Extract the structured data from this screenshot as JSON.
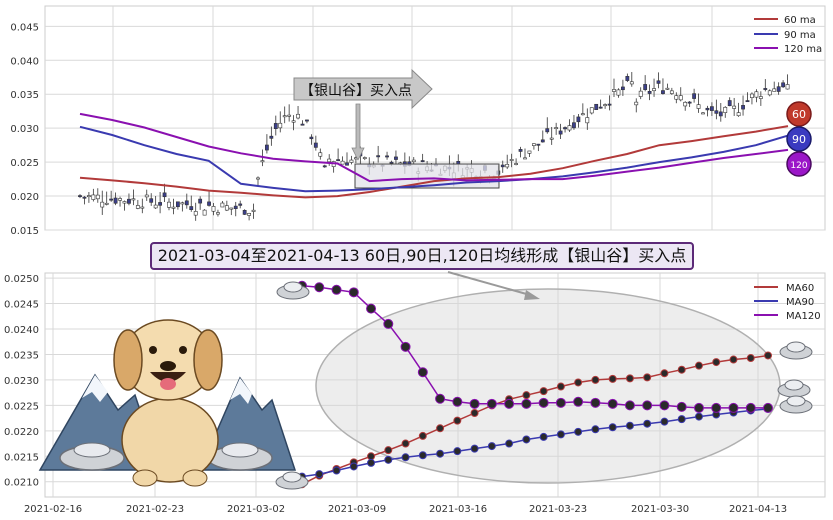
{
  "chart_data": [
    {
      "type": "candlestick",
      "ylim": [
        0.015,
        0.048
      ],
      "yticks": [
        "0.015",
        "0.020",
        "0.025",
        "0.030",
        "0.035",
        "0.040",
        "0.045"
      ],
      "legend": [
        "60 ma",
        "90 ma",
        "120 ma"
      ],
      "legend_position": "top-right",
      "annotation": "【银山谷】买入点",
      "badges": [
        "60",
        "90",
        "120"
      ],
      "colors": {
        "ma60": "#b23a3a",
        "ma90": "#3a3ab0",
        "ma120": "#8a10b0"
      },
      "series": [
        {
          "name": "60 ma",
          "values": [
            0.0227,
            0.0223,
            0.0219,
            0.0214,
            0.0208,
            0.0205,
            0.0201,
            0.0198,
            0.02,
            0.0206,
            0.0214,
            0.0222,
            0.0226,
            0.0228,
            0.0233,
            0.0241,
            0.0252,
            0.0262,
            0.0275,
            0.0281,
            0.0288,
            0.0295,
            0.0303
          ]
        },
        {
          "name": "90 ma",
          "values": [
            0.0302,
            0.029,
            0.0275,
            0.0262,
            0.0252,
            0.0218,
            0.0212,
            0.0207,
            0.0208,
            0.021,
            0.0213,
            0.0216,
            0.022,
            0.0222,
            0.0225,
            0.0229,
            0.0235,
            0.0242,
            0.025,
            0.0257,
            0.0265,
            0.0275,
            0.0289
          ]
        },
        {
          "name": "120 ma",
          "values": [
            0.0321,
            0.0312,
            0.0301,
            0.0287,
            0.0273,
            0.0263,
            0.0255,
            0.0251,
            0.0248,
            0.0222,
            0.0225,
            0.0226,
            0.0223,
            0.0224,
            0.0225,
            0.0225,
            0.023,
            0.0236,
            0.0242,
            0.0249,
            0.0256,
            0.0262,
            0.0268
          ]
        }
      ]
    },
    {
      "type": "line",
      "x": [
        "2021-03-04",
        "2021-03-05",
        "2021-03-08",
        "2021-03-09",
        "2021-03-10",
        "2021-03-11",
        "2021-03-12",
        "2021-03-15",
        "2021-03-16",
        "2021-03-17",
        "2021-03-18",
        "2021-03-19",
        "2021-03-22",
        "2021-03-23",
        "2021-03-24",
        "2021-03-25",
        "2021-03-26",
        "2021-03-29",
        "2021-03-30",
        "2021-03-31",
        "2021-04-01",
        "2021-04-02",
        "2021-04-06",
        "2021-04-07",
        "2021-04-08",
        "2021-04-09",
        "2021-04-12",
        "2021-04-13"
      ],
      "xticks": [
        "2021-02-16",
        "2021-02-23",
        "2021-03-02",
        "2021-03-09",
        "2021-03-16",
        "2021-03-23",
        "2021-03-30",
        "2021-04-13"
      ],
      "ylim": [
        0.0207,
        0.0251
      ],
      "yticks": [
        "0.0210",
        "0.0215",
        "0.0220",
        "0.0225",
        "0.0230",
        "0.0235",
        "0.0240",
        "0.0245",
        "0.0250"
      ],
      "legend_position": "top-right",
      "series": [
        {
          "name": "MA60",
          "values": [
            0.02095,
            0.02112,
            0.02125,
            0.02138,
            0.0215,
            0.02162,
            0.02175,
            0.0219,
            0.02205,
            0.0222,
            0.02235,
            0.0225,
            0.02262,
            0.0227,
            0.02278,
            0.02287,
            0.02295,
            0.023,
            0.02302,
            0.02303,
            0.02305,
            0.02313,
            0.0232,
            0.02328,
            0.02335,
            0.0234,
            0.02343,
            0.02348
          ]
        },
        {
          "name": "MA90",
          "values": [
            0.0211,
            0.02115,
            0.02122,
            0.0213,
            0.02137,
            0.02143,
            0.02148,
            0.02152,
            0.02155,
            0.0216,
            0.02165,
            0.0217,
            0.02175,
            0.02183,
            0.02188,
            0.02193,
            0.02198,
            0.02203,
            0.02207,
            0.0221,
            0.02214,
            0.02218,
            0.02223,
            0.02228,
            0.02232,
            0.02236,
            0.0224,
            0.02243
          ]
        },
        {
          "name": "MA120",
          "values": [
            0.02485,
            0.02482,
            0.02477,
            0.02472,
            0.0244,
            0.0241,
            0.02365,
            0.02315,
            0.02263,
            0.02257,
            0.02253,
            0.02253,
            0.02253,
            0.02253,
            0.02255,
            0.02255,
            0.02257,
            0.02255,
            0.02253,
            0.0225,
            0.0225,
            0.0225,
            0.02247,
            0.02245,
            0.02245,
            0.02245,
            0.02245,
            0.02245
          ]
        }
      ]
    }
  ],
  "title_text": "2021-03-04至2021-04-13 60日,90日,120日均线形成【银山谷】买入点"
}
